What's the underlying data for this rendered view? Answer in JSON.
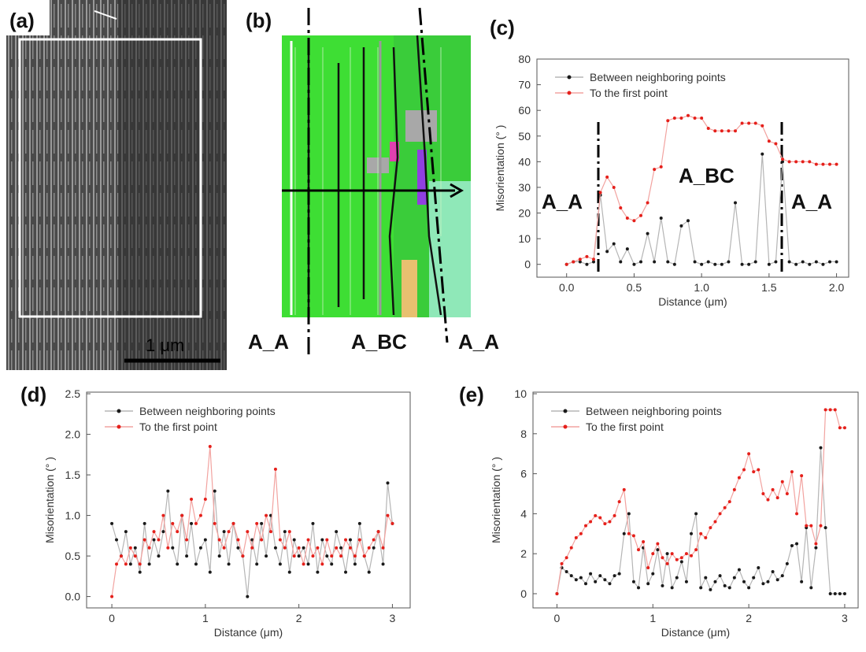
{
  "panels": {
    "a": {
      "label": "(a)",
      "scale_bar": "1 μm"
    },
    "b": {
      "label": "(b)",
      "zones": [
        "A_A",
        "A_BC",
        "A_A"
      ]
    }
  },
  "chart_data": [
    {
      "type": "line",
      "label": "(c)",
      "xlabel": "Distance (μm)",
      "ylabel": "Misorientation (° )",
      "annotations": [
        "A_A",
        "A_BC",
        "A_A"
      ],
      "x": [
        0,
        0.05,
        0.1,
        0.15,
        0.2,
        0.25,
        0.3,
        0.35,
        0.4,
        0.45,
        0.5,
        0.55,
        0.6,
        0.65,
        0.7,
        0.75,
        0.8,
        0.85,
        0.9,
        0.95,
        1,
        1.05,
        1.1,
        1.15,
        1.2,
        1.25,
        1.3,
        1.35,
        1.4,
        1.45,
        1.5,
        1.55,
        1.6,
        1.65,
        1.7,
        1.75,
        1.8,
        1.85,
        1.9,
        1.95,
        2
      ],
      "series": [
        {
          "name": "Between neighboring points",
          "color": "#1a1a1a",
          "line_color": "#b5b5b5",
          "values": [
            0,
            1,
            1,
            0,
            1,
            27,
            5,
            8,
            1,
            6,
            0,
            1,
            12,
            1,
            18,
            1,
            0,
            15,
            17,
            1,
            0,
            1,
            0,
            0,
            1,
            24,
            0,
            0,
            1,
            43,
            0,
            1,
            40,
            1,
            0,
            1,
            0,
            1,
            0,
            1,
            1
          ]
        },
        {
          "name": "To the first point",
          "color": "#e5201b",
          "line_color": "#f2a3a0",
          "values": [
            0,
            1,
            2,
            3,
            2,
            28,
            34,
            30,
            22,
            18,
            17,
            19,
            24,
            37,
            38,
            56,
            57,
            57,
            58,
            57,
            57,
            53,
            52,
            52,
            52,
            52,
            55,
            55,
            55,
            54,
            48,
            47,
            41,
            40,
            40,
            40,
            40,
            39,
            39,
            39,
            39
          ]
        }
      ],
      "xlim": [
        -0.22,
        2.09
      ],
      "xticks": [
        {
          "value": 0,
          "label": "0.0"
        },
        0.5,
        {
          "value": 1,
          "label": "1.0"
        },
        1.5,
        {
          "value": 2,
          "label": "2.0"
        }
      ],
      "ylim": [
        -5,
        80
      ],
      "yticks": [
        0,
        10,
        20,
        30,
        40,
        50,
        60,
        70,
        80
      ],
      "legend": "upper left"
    },
    {
      "type": "line",
      "label": "(d)",
      "xlabel": "Distance (μm)",
      "ylabel": "Misorientation (° )",
      "x": [
        0,
        0.05,
        0.1,
        0.15,
        0.2,
        0.25,
        0.3,
        0.35,
        0.4,
        0.45,
        0.5,
        0.55,
        0.6,
        0.65,
        0.7,
        0.75,
        0.8,
        0.85,
        0.9,
        0.95,
        1,
        1.05,
        1.1,
        1.15,
        1.2,
        1.25,
        1.3,
        1.35,
        1.4,
        1.45,
        1.5,
        1.55,
        1.6,
        1.65,
        1.7,
        1.75,
        1.8,
        1.85,
        1.9,
        1.95,
        2,
        2.05,
        2.1,
        2.15,
        2.2,
        2.25,
        2.3,
        2.35,
        2.4,
        2.45,
        2.5,
        2.55,
        2.6,
        2.65,
        2.7,
        2.75,
        2.8,
        2.85,
        2.9,
        2.95,
        3
      ],
      "series": [
        {
          "name": "Between neighboring points",
          "color": "#1a1a1a",
          "line_color": "#b5b5b5",
          "values": [
            0.9,
            0.7,
            0.5,
            0.8,
            0.4,
            0.6,
            0.3,
            0.9,
            0.4,
            0.7,
            0.5,
            0.8,
            1.3,
            0.6,
            0.4,
            1.0,
            0.5,
            0.9,
            0.4,
            0.6,
            0.7,
            0.3,
            1.3,
            0.5,
            0.8,
            0.4,
            0.9,
            0.6,
            0.5,
            0.0,
            0.7,
            0.4,
            0.9,
            0.5,
            1.0,
            0.6,
            0.4,
            0.8,
            0.3,
            0.7,
            0.5,
            0.6,
            0.4,
            0.9,
            0.3,
            0.7,
            0.5,
            0.4,
            0.8,
            0.6,
            0.3,
            0.7,
            0.4,
            0.9,
            0.5,
            0.3,
            0.6,
            0.8,
            0.4,
            1.4,
            0.9
          ]
        },
        {
          "name": "To the first point",
          "color": "#e5201b",
          "line_color": "#f2a3a0",
          "values": [
            0.0,
            0.4,
            0.5,
            0.4,
            0.6,
            0.5,
            0.4,
            0.7,
            0.6,
            0.8,
            0.7,
            1.0,
            0.6,
            0.9,
            0.8,
            1.0,
            0.7,
            1.2,
            0.9,
            1.0,
            1.2,
            1.85,
            0.9,
            0.7,
            0.6,
            0.8,
            0.9,
            0.7,
            0.5,
            0.8,
            0.6,
            0.9,
            0.7,
            1.0,
            0.8,
            1.57,
            0.7,
            0.6,
            0.8,
            0.5,
            0.6,
            0.4,
            0.7,
            0.5,
            0.6,
            0.4,
            0.7,
            0.5,
            0.6,
            0.5,
            0.7,
            0.6,
            0.5,
            0.7,
            0.5,
            0.6,
            0.7,
            0.8,
            0.6,
            1.0,
            0.9
          ]
        }
      ],
      "xlim": [
        -0.27,
        3.19
      ],
      "xticks": [
        0,
        1,
        2,
        3
      ],
      "ylim": [
        -0.14,
        2.52
      ],
      "yticks": [
        {
          "value": 0,
          "label": "0.0"
        },
        0.5,
        {
          "value": 1,
          "label": "1.0"
        },
        1.5,
        {
          "value": 2,
          "label": "2.0"
        },
        2.5
      ],
      "legend": "upper left"
    },
    {
      "type": "line",
      "label": "(e)",
      "xlabel": "Distance (μm)",
      "ylabel": "Misorientation (° )",
      "x": [
        0,
        0.05,
        0.1,
        0.15,
        0.2,
        0.25,
        0.3,
        0.35,
        0.4,
        0.45,
        0.5,
        0.55,
        0.6,
        0.65,
        0.7,
        0.75,
        0.8,
        0.85,
        0.9,
        0.95,
        1,
        1.05,
        1.1,
        1.15,
        1.2,
        1.25,
        1.3,
        1.35,
        1.4,
        1.45,
        1.5,
        1.55,
        1.6,
        1.65,
        1.7,
        1.75,
        1.8,
        1.85,
        1.9,
        1.95,
        2,
        2.05,
        2.1,
        2.15,
        2.2,
        2.25,
        2.3,
        2.35,
        2.4,
        2.45,
        2.5,
        2.55,
        2.6,
        2.65,
        2.7,
        2.75,
        2.8,
        2.85,
        2.9,
        2.95,
        3
      ],
      "series": [
        {
          "name": "Between neighboring points",
          "color": "#1a1a1a",
          "line_color": "#b5b5b5",
          "values": [
            0,
            1.3,
            1.1,
            0.9,
            0.7,
            0.8,
            0.5,
            1.0,
            0.6,
            0.9,
            0.7,
            0.5,
            0.9,
            1.0,
            3.0,
            4.0,
            0.6,
            0.3,
            2.3,
            0.5,
            1.0,
            2.2,
            0.4,
            2.0,
            0.3,
            0.8,
            1.6,
            0.6,
            3.0,
            4.0,
            0.3,
            0.8,
            0.2,
            0.6,
            0.9,
            0.4,
            0.3,
            0.8,
            1.2,
            0.6,
            0.3,
            0.8,
            1.3,
            0.5,
            0.6,
            1.1,
            0.7,
            0.9,
            1.5,
            2.4,
            2.5,
            0.6,
            3.3,
            0.3,
            2.3,
            7.3,
            3.3,
            0,
            0,
            0,
            0
          ]
        },
        {
          "name": "To the first point",
          "color": "#e5201b",
          "line_color": "#f2a3a0",
          "values": [
            0,
            1.5,
            1.8,
            2.3,
            2.8,
            3.0,
            3.4,
            3.6,
            3.9,
            3.8,
            3.5,
            3.6,
            3.9,
            4.6,
            5.2,
            3.0,
            2.9,
            2.2,
            2.6,
            1.3,
            2.0,
            2.5,
            1.8,
            1.5,
            2.0,
            1.7,
            1.8,
            2.0,
            1.9,
            2.2,
            3.0,
            2.8,
            3.3,
            3.6,
            4.0,
            4.3,
            4.6,
            5.2,
            5.8,
            6.2,
            7.0,
            6.1,
            6.2,
            5.0,
            4.7,
            5.2,
            4.8,
            5.6,
            5.0,
            6.1,
            4.0,
            5.9,
            3.4,
            3.4,
            2.5,
            3.4,
            9.2,
            9.2,
            9.2,
            8.3,
            8.3
          ]
        }
      ],
      "xlim": [
        -0.25,
        3.14
      ],
      "xticks": [
        0,
        1,
        2,
        3
      ],
      "ylim": [
        -0.71,
        10.08
      ],
      "yticks": [
        0,
        2,
        4,
        6,
        8,
        10
      ],
      "legend": "upper left"
    }
  ]
}
